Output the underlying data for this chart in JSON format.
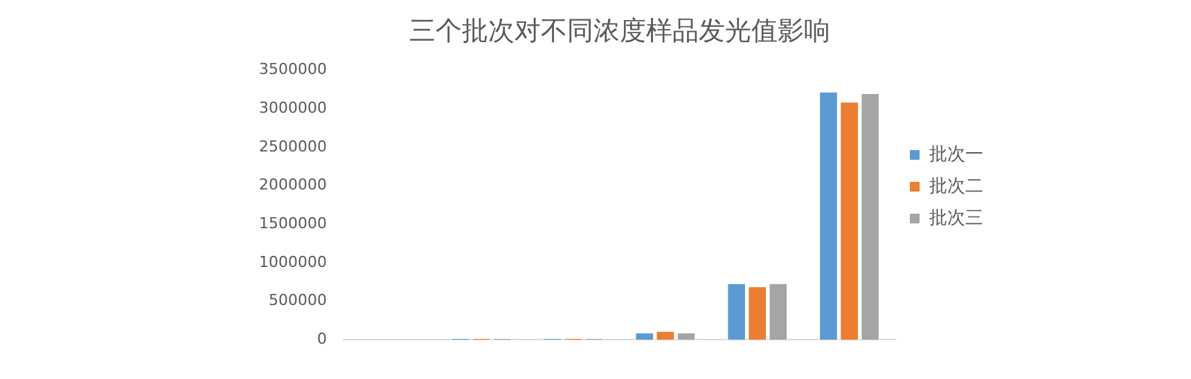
{
  "chart_data": {
    "type": "bar",
    "title": "三个批次对不同浓度样品发光值影响",
    "categories": [
      null,
      null,
      null,
      null,
      null,
      null
    ],
    "series": [
      {
        "name": "批次一",
        "color": "#5b9bd5",
        "values": [
          null,
          20000,
          20000,
          100000,
          740000,
          3230000
        ]
      },
      {
        "name": "批次二",
        "color": "#ed7d31",
        "values": [
          null,
          20000,
          20000,
          120000,
          700000,
          3100000
        ]
      },
      {
        "name": "批次三",
        "color": "#a5a5a5",
        "values": [
          null,
          20000,
          20000,
          100000,
          740000,
          3210000
        ]
      }
    ],
    "ylim": [
      0,
      3500000
    ],
    "yticks": [
      0,
      500000,
      1000000,
      1500000,
      2000000,
      2500000,
      3000000,
      3500000
    ],
    "grid": false,
    "legend": "right"
  }
}
